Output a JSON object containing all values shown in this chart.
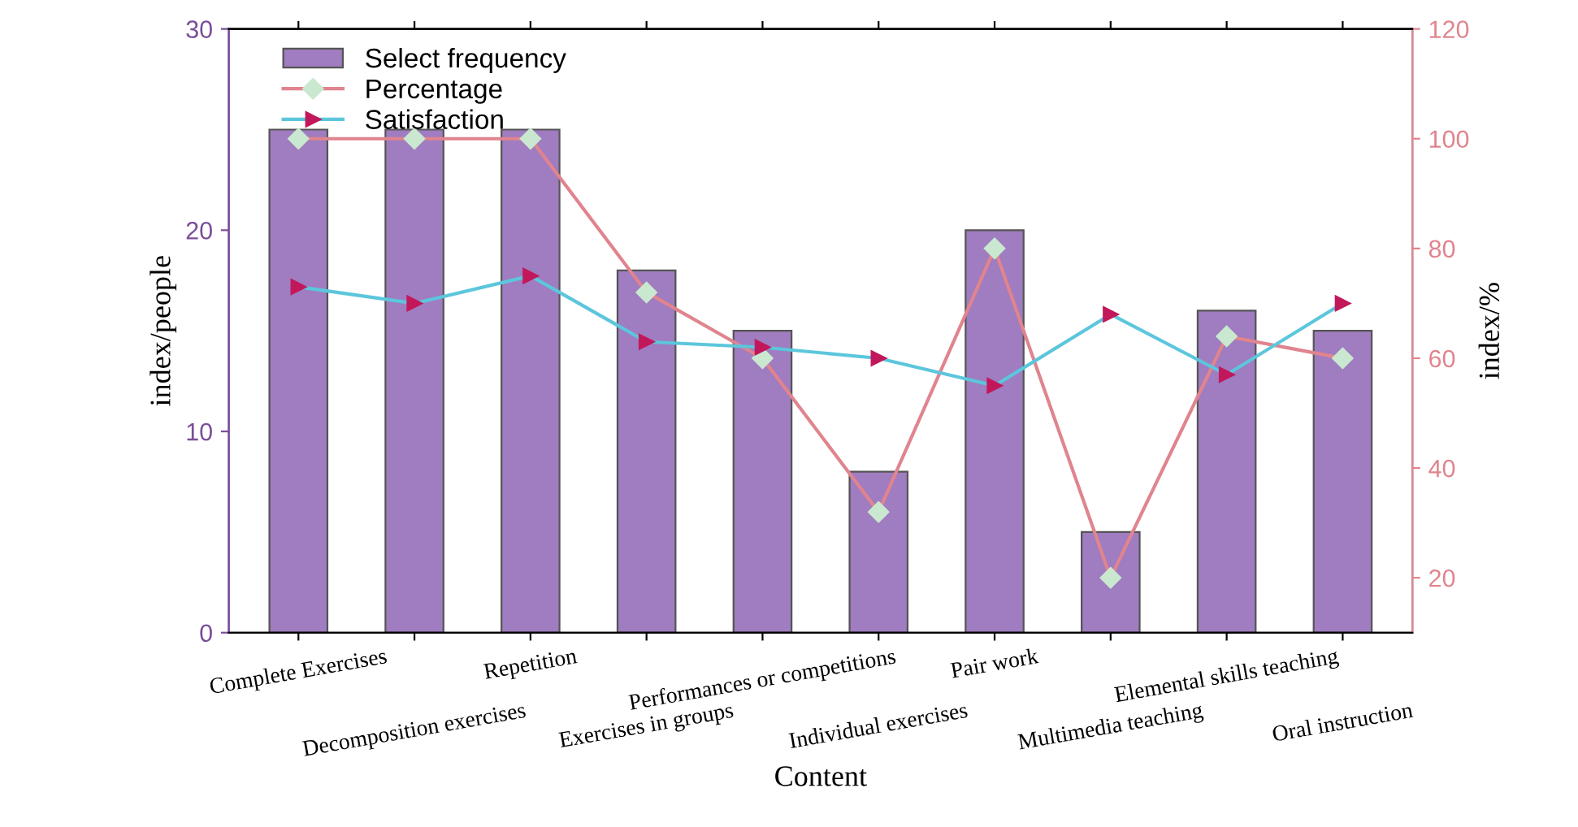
{
  "chart_data": {
    "type": "bar",
    "xlabel": "Content",
    "ylabel": "index/people",
    "y2label": "index/%",
    "categories": [
      "Complete Exercises",
      "Decomposition exercises",
      "Repetition",
      "Exercises in groups",
      "Performances or competitions",
      "Individual exercises",
      "Pair work",
      "Multimedia teaching",
      "Elemental skills teaching",
      "Oral instruction"
    ],
    "series": [
      {
        "name": "Select frequency",
        "color": "#a07cc0",
        "values": [
          25,
          25,
          25,
          18,
          15,
          8,
          20,
          5,
          16,
          15
        ]
      },
      {
        "name": "Percentage",
        "type": "line",
        "axis": "y2",
        "color": "#e0848e",
        "marker": "diamond",
        "values": [
          100,
          100,
          100,
          72,
          60,
          32,
          80,
          20,
          64,
          60
        ]
      },
      {
        "name": "Satisfaction",
        "type": "line",
        "axis": "y2",
        "color": "#5cc6dc",
        "marker": "triangle",
        "values": [
          73,
          70,
          75,
          63,
          62,
          60,
          55,
          68,
          57,
          70
        ]
      }
    ],
    "ylim": [
      0,
      30
    ],
    "yticks": [
      0,
      10,
      20,
      30
    ],
    "y2lim": [
      10,
      120
    ],
    "y2ticks": [
      20,
      40,
      60,
      80,
      100,
      120
    ],
    "grid": false,
    "legend": "top left"
  }
}
